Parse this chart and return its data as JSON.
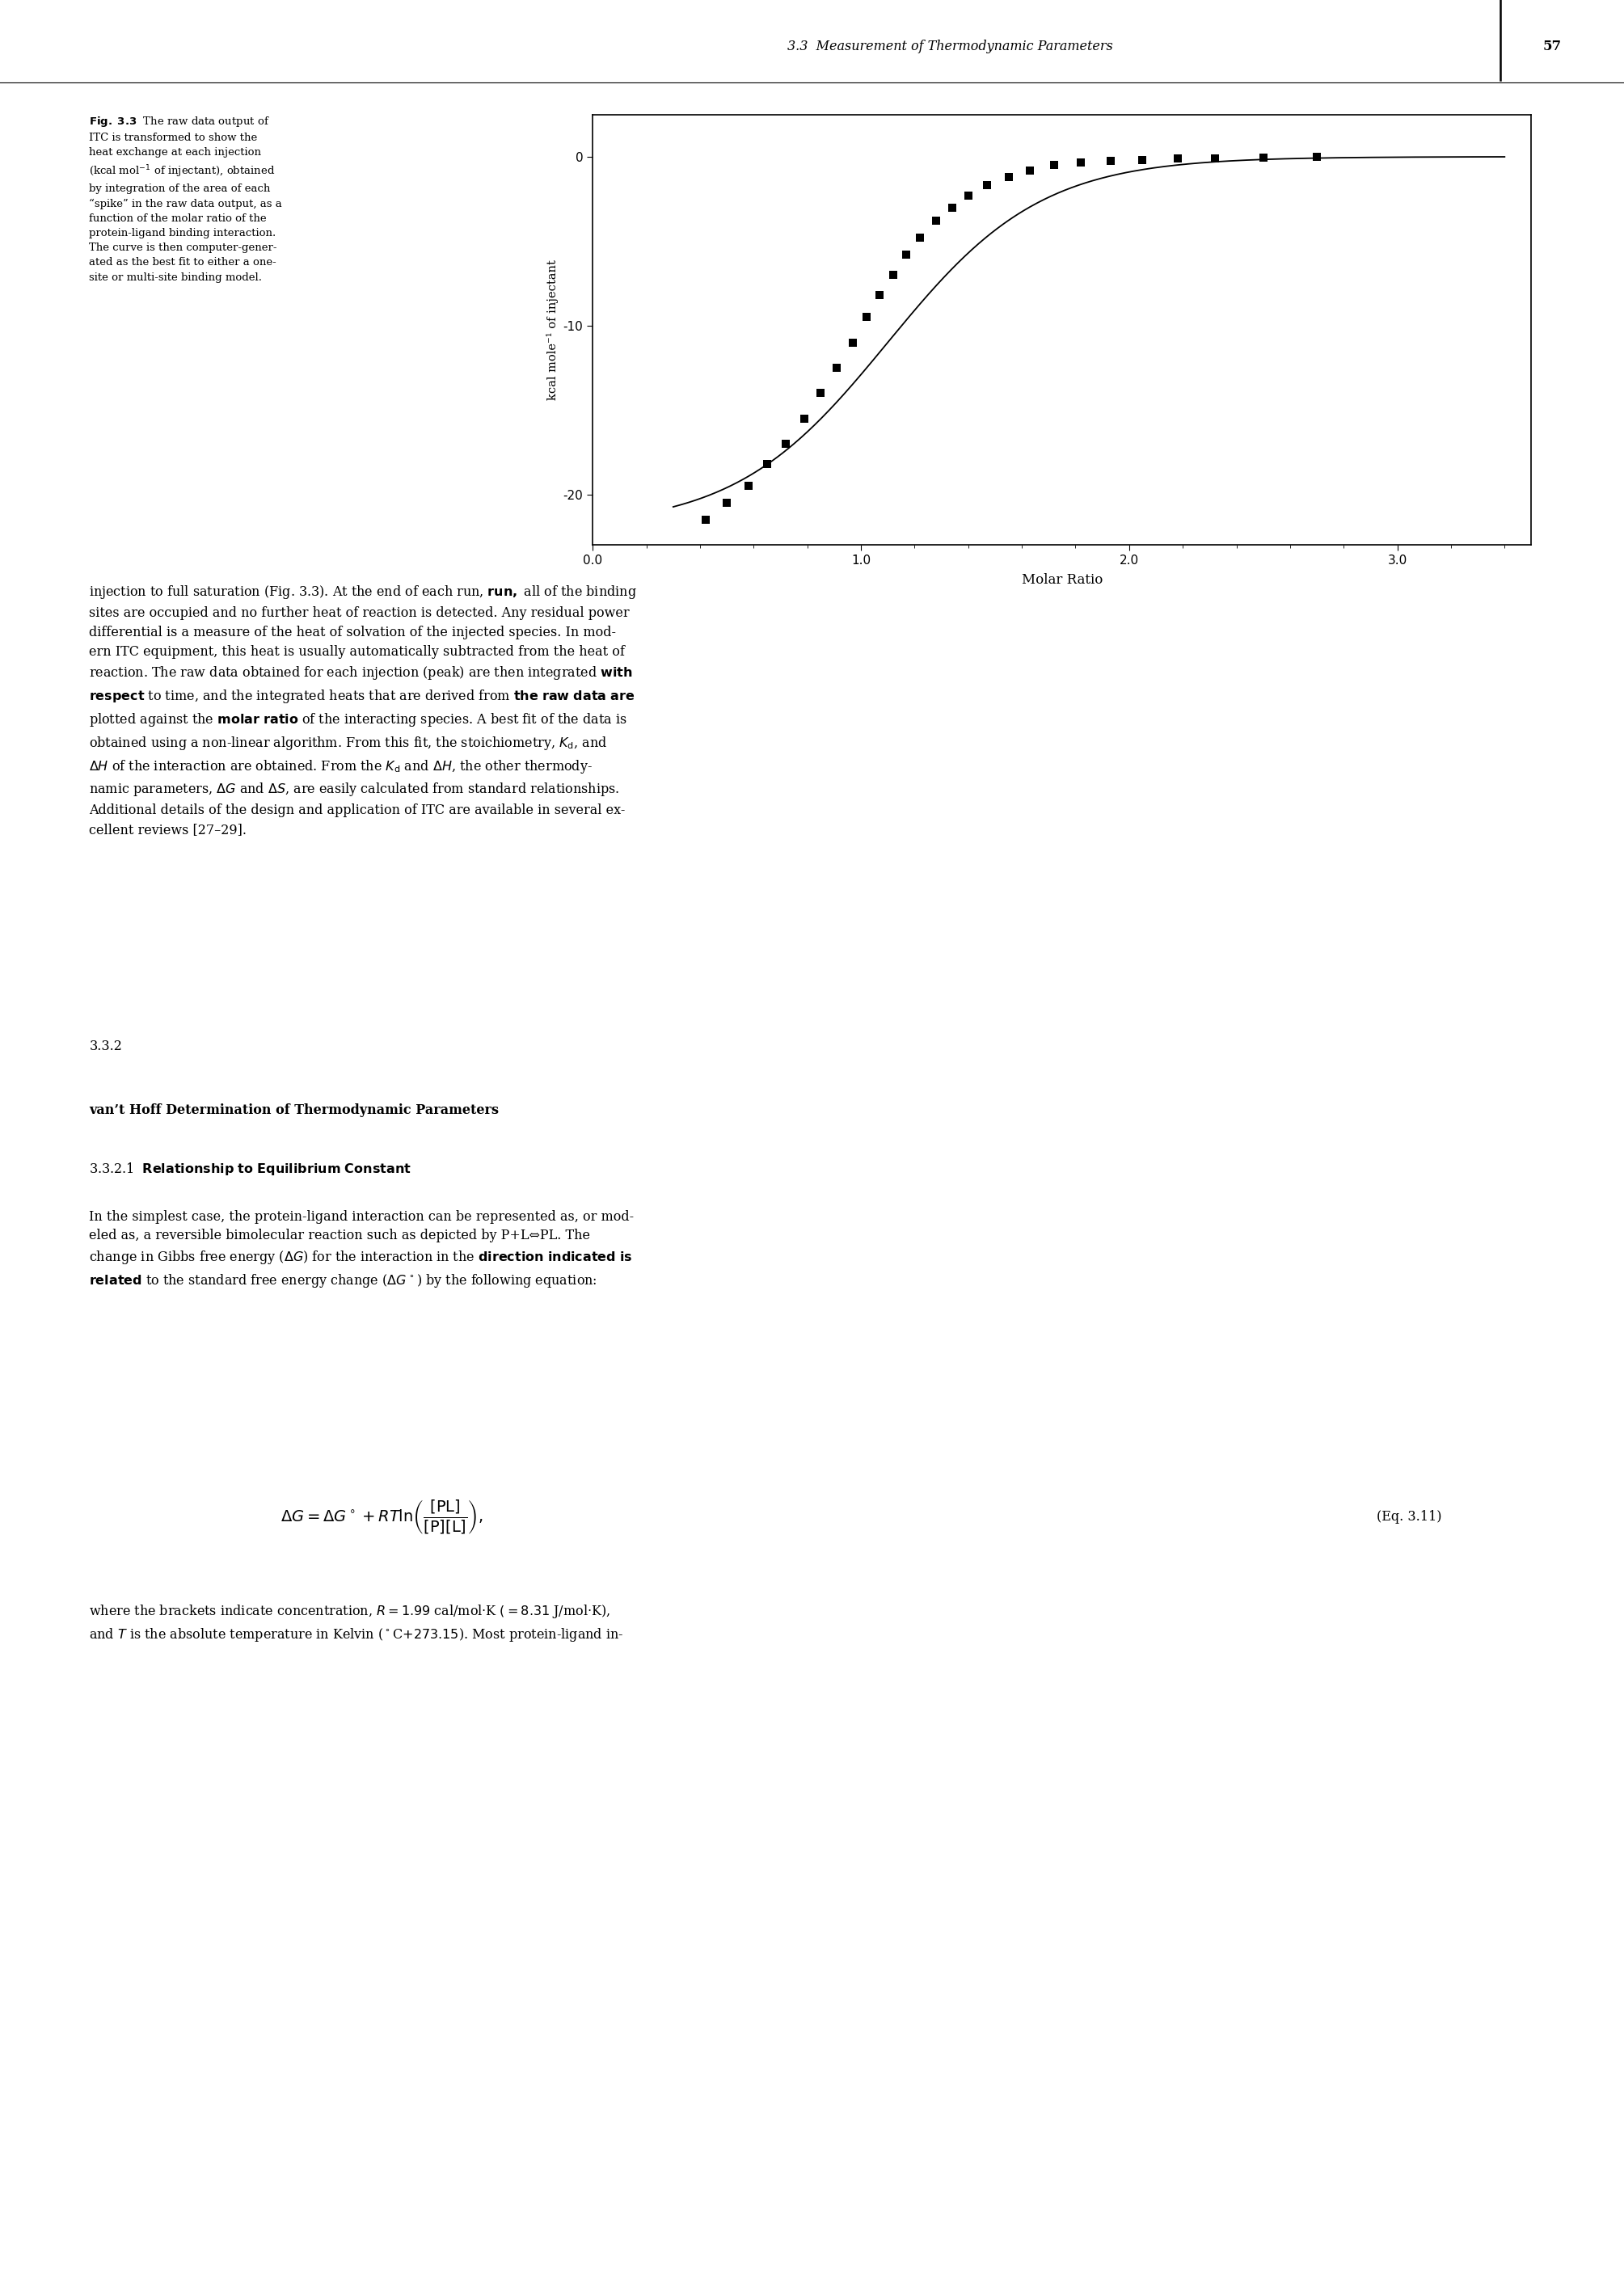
{
  "page_header_italic": "3.3  Measurement of Thermodynamic Parameters",
  "page_number": "57",
  "xlabel": "Molar Ratio",
  "ylabel": "kcal mole⁻¹ of injectant",
  "xlim": [
    0.0,
    3.5
  ],
  "ylim": [
    -23,
    2.5
  ],
  "xticks": [
    0.0,
    1.0,
    2.0,
    3.0
  ],
  "yticks": [
    0,
    -10,
    -20
  ],
  "scatter_x": [
    0.42,
    0.5,
    0.58,
    0.65,
    0.72,
    0.79,
    0.85,
    0.91,
    0.97,
    1.02,
    1.07,
    1.12,
    1.17,
    1.22,
    1.28,
    1.34,
    1.4,
    1.47,
    1.55,
    1.63,
    1.72,
    1.82,
    1.93,
    2.05,
    2.18,
    2.32,
    2.5,
    2.7
  ],
  "scatter_y": [
    -21.5,
    -20.5,
    -19.5,
    -18.2,
    -17.0,
    -15.5,
    -14.0,
    -12.5,
    -11.0,
    -9.5,
    -8.2,
    -7.0,
    -5.8,
    -4.8,
    -3.8,
    -3.0,
    -2.3,
    -1.7,
    -1.2,
    -0.8,
    -0.5,
    -0.35,
    -0.25,
    -0.18,
    -0.12,
    -0.08,
    -0.05,
    -0.03
  ],
  "curve_color": "#000000",
  "scatter_color": "#000000",
  "bg_color": "#ffffff",
  "section_332": "3.3.2",
  "section_332_title": "van’t Hoff Determination of Thermodynamic Parameters",
  "section_3321": "3.3.2.1",
  "section_3321_title": "Relationship to Equilibrium Constant",
  "eq_number": "(Eq. 3.11)"
}
